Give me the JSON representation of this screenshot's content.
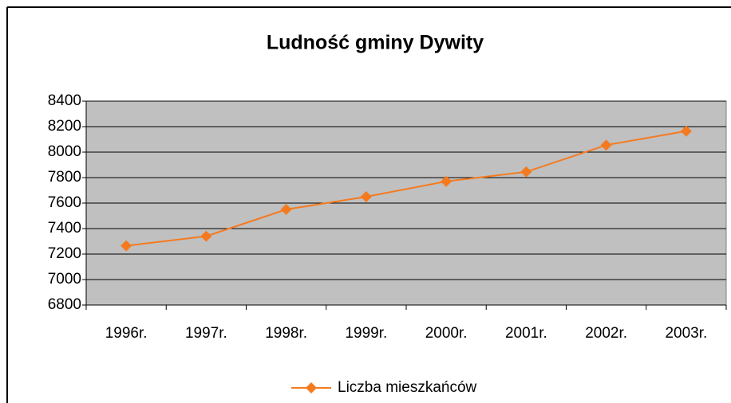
{
  "chart_data": {
    "type": "line",
    "title": "Ludność gminy Dywity",
    "categories": [
      "1996r.",
      "1997r.",
      "1998r.",
      "1999r.",
      "2000r.",
      "2001r.",
      "2002r.",
      "2003r."
    ],
    "series": [
      {
        "name": "Liczba mieszkańców",
        "color": "#f57a1f",
        "values": [
          7265,
          7340,
          7550,
          7650,
          7770,
          7845,
          8055,
          8165
        ]
      }
    ],
    "ylim": [
      6800,
      8400
    ],
    "yticks": [
      6800,
      7000,
      7200,
      7400,
      7600,
      7800,
      8000,
      8200,
      8400
    ],
    "grid": true,
    "legend": "bottom"
  }
}
